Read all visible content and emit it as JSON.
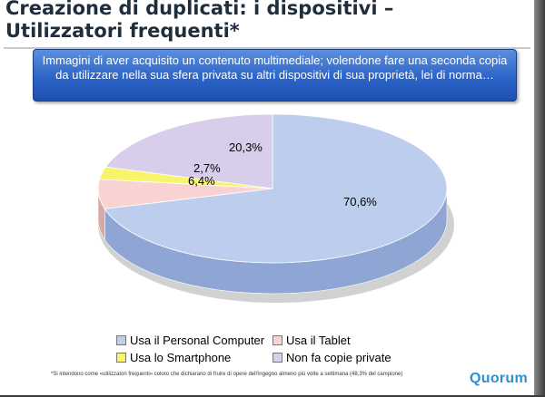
{
  "title": "Creazione di duplicati: i dispositivi – Utilizzatori frequenti*",
  "question": "Immagini di aver acquisito un contenuto multimediale; volendone fare una seconda copia da utilizzare nella sua sfera privata su altri dispositivi di sua proprietà, lei di norma…",
  "footnote": "*Si intendono come «utilizzatori frequenti» coloro che dichiarano di fruire di opere dell'ingegno almeno più volte a settimana (48,3% del campione)",
  "logo": "Quorum",
  "chart_data": {
    "type": "pie",
    "series": [
      {
        "name": "Usa il Personal Computer",
        "value": 70.6,
        "label": "70,6%",
        "color": "#bccdee"
      },
      {
        "name": "Usa il Tablet",
        "value": 6.4,
        "label": "6,4%",
        "color": "#f9d2d2"
      },
      {
        "name": "Usa lo Smartphone",
        "value": 2.7,
        "label": "2,7%",
        "color": "#f7f36a"
      },
      {
        "name": "Non fa copie private",
        "value": 20.3,
        "label": "20,3%",
        "color": "#d9cdec"
      }
    ],
    "three_d": true,
    "legend_position": "bottom"
  }
}
